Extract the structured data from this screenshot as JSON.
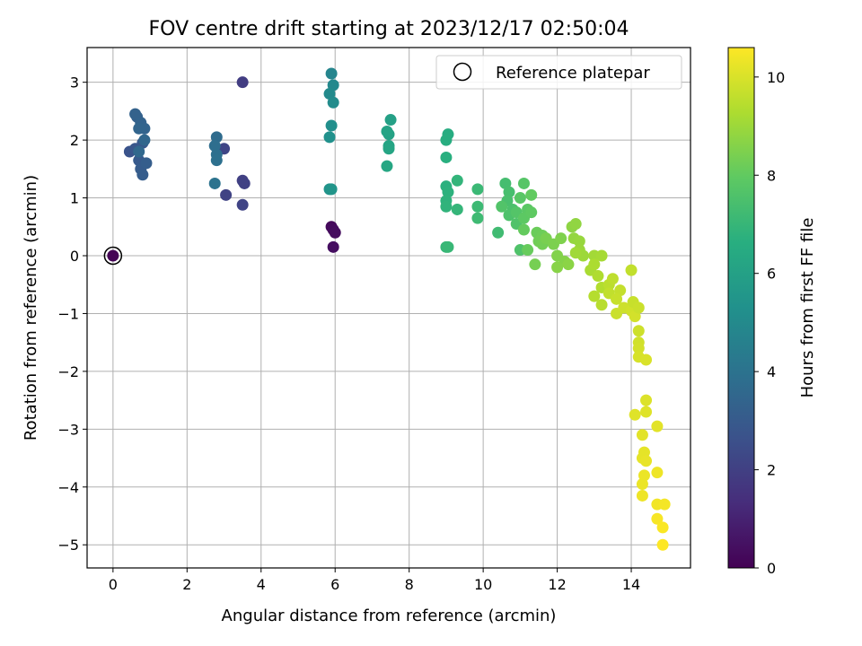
{
  "chart_data": {
    "type": "scatter",
    "title": "FOV centre drift starting at 2023/12/17 02:50:04",
    "xlabel": "Angular distance from reference (arcmin)",
    "ylabel": "Rotation from reference (arcmin)",
    "xlim": [
      -0.7,
      15.6
    ],
    "ylim": [
      -5.4,
      3.6
    ],
    "xticks": [
      0,
      2,
      4,
      6,
      8,
      10,
      12,
      14
    ],
    "yticks": [
      3,
      2,
      1,
      0,
      -1,
      -2,
      -3,
      -4,
      -5
    ],
    "grid": true,
    "colormap": "viridis",
    "colorbar": {
      "label": "Hours from first FF file",
      "min": 0,
      "max": 10.6,
      "ticks": [
        0,
        2,
        4,
        6,
        8,
        10
      ]
    },
    "reference": {
      "name": "Reference platepar",
      "x": 0,
      "y": 0
    },
    "legend": {
      "position": "top-right",
      "entries": [
        "Reference platepar"
      ]
    },
    "points": [
      [
        0.0,
        0.0,
        0.05
      ],
      [
        5.9,
        0.5,
        0.25
      ],
      [
        5.95,
        0.45,
        0.3
      ],
      [
        6.0,
        0.4,
        0.35
      ],
      [
        5.95,
        0.15,
        0.4
      ],
      [
        3.5,
        3.0,
        1.9
      ],
      [
        3.5,
        1.3,
        2.0
      ],
      [
        3.55,
        1.25,
        2.05
      ],
      [
        3.05,
        1.05,
        2.1
      ],
      [
        3.5,
        0.88,
        2.15
      ],
      [
        3.0,
        1.85,
        2.2
      ],
      [
        0.45,
        1.8,
        2.7
      ],
      [
        0.6,
        1.85,
        2.8
      ],
      [
        0.8,
        1.95,
        2.9
      ],
      [
        0.7,
        1.65,
        3.0
      ],
      [
        0.75,
        1.5,
        3.05
      ],
      [
        0.8,
        1.4,
        3.1
      ],
      [
        0.9,
        1.6,
        3.15
      ],
      [
        0.65,
        2.4,
        3.25
      ],
      [
        0.6,
        2.45,
        3.3
      ],
      [
        0.75,
        2.3,
        3.35
      ],
      [
        0.85,
        2.2,
        3.4
      ],
      [
        0.7,
        2.2,
        3.45
      ],
      [
        0.85,
        2.0,
        3.5
      ],
      [
        0.7,
        1.8,
        3.55
      ],
      [
        2.8,
        2.05,
        3.7
      ],
      [
        2.75,
        1.9,
        3.8
      ],
      [
        2.8,
        1.75,
        3.85
      ],
      [
        2.8,
        1.65,
        3.9
      ],
      [
        2.75,
        1.25,
        4.0
      ],
      [
        5.9,
        3.15,
        4.8
      ],
      [
        5.95,
        2.95,
        4.9
      ],
      [
        5.85,
        2.8,
        5.0
      ],
      [
        5.95,
        2.65,
        5.1
      ],
      [
        5.9,
        2.25,
        5.2
      ],
      [
        5.85,
        2.05,
        5.3
      ],
      [
        5.85,
        1.15,
        5.4
      ],
      [
        5.9,
        1.15,
        5.5
      ],
      [
        7.5,
        2.35,
        6.0
      ],
      [
        7.45,
        2.1,
        6.05
      ],
      [
        7.4,
        2.15,
        6.1
      ],
      [
        7.45,
        1.9,
        6.15
      ],
      [
        7.45,
        1.85,
        6.2
      ],
      [
        7.4,
        1.55,
        6.25
      ],
      [
        9.05,
        2.1,
        6.55
      ],
      [
        9.0,
        2.0,
        6.6
      ],
      [
        9.0,
        1.7,
        6.65
      ],
      [
        9.0,
        1.2,
        6.7
      ],
      [
        9.05,
        1.1,
        6.75
      ],
      [
        9.0,
        0.95,
        6.8
      ],
      [
        9.0,
        0.85,
        6.85
      ],
      [
        9.3,
        1.3,
        6.9
      ],
      [
        9.3,
        0.8,
        6.95
      ],
      [
        9.0,
        0.15,
        7.0
      ],
      [
        9.05,
        0.15,
        7.05
      ],
      [
        9.85,
        1.15,
        7.1
      ],
      [
        9.85,
        0.85,
        7.15
      ],
      [
        9.85,
        0.65,
        7.2
      ],
      [
        10.4,
        0.4,
        7.25
      ],
      [
        10.6,
        1.25,
        7.35
      ],
      [
        10.7,
        1.1,
        7.4
      ],
      [
        10.65,
        0.95,
        7.45
      ],
      [
        10.8,
        0.8,
        7.5
      ],
      [
        10.7,
        0.7,
        7.55
      ],
      [
        10.9,
        0.55,
        7.6
      ],
      [
        11.0,
        0.1,
        7.6
      ],
      [
        10.5,
        0.85,
        7.65
      ],
      [
        10.9,
        0.75,
        7.7
      ],
      [
        11.1,
        1.25,
        7.75
      ],
      [
        11.0,
        1.0,
        7.8
      ],
      [
        11.2,
        0.8,
        7.85
      ],
      [
        11.1,
        0.65,
        7.9
      ],
      [
        11.3,
        0.75,
        7.95
      ],
      [
        11.3,
        1.05,
        8.0
      ],
      [
        11.1,
        0.45,
        8.05
      ],
      [
        11.2,
        0.1,
        8.1
      ],
      [
        11.45,
        0.4,
        8.15
      ],
      [
        11.6,
        0.35,
        8.2
      ],
      [
        11.5,
        0.25,
        8.25
      ],
      [
        11.6,
        0.2,
        8.3
      ],
      [
        11.4,
        -0.15,
        8.35
      ],
      [
        11.7,
        0.3,
        8.4
      ],
      [
        11.9,
        0.2,
        8.45
      ],
      [
        12.1,
        0.3,
        8.5
      ],
      [
        12.0,
        0.0,
        8.55
      ],
      [
        12.2,
        -0.1,
        8.6
      ],
      [
        12.0,
        -0.2,
        8.65
      ],
      [
        12.3,
        -0.15,
        8.7
      ],
      [
        12.4,
        0.5,
        8.75
      ],
      [
        12.5,
        0.55,
        8.8
      ],
      [
        12.45,
        0.3,
        8.85
      ],
      [
        12.6,
        0.25,
        8.9
      ],
      [
        12.6,
        0.1,
        8.95
      ],
      [
        12.7,
        0.0,
        9.0
      ],
      [
        12.5,
        0.05,
        9.05
      ],
      [
        13.0,
        0.0,
        9.1
      ],
      [
        13.2,
        0.0,
        9.15
      ],
      [
        12.9,
        -0.25,
        9.2
      ],
      [
        13.0,
        -0.15,
        9.25
      ],
      [
        13.1,
        -0.35,
        9.3
      ],
      [
        13.2,
        -0.55,
        9.35
      ],
      [
        13.0,
        -0.7,
        9.4
      ],
      [
        13.2,
        -0.85,
        9.45
      ],
      [
        13.4,
        -0.5,
        9.5
      ],
      [
        13.5,
        -0.4,
        9.55
      ],
      [
        13.4,
        -0.65,
        9.6
      ],
      [
        13.7,
        -0.6,
        9.65
      ],
      [
        13.6,
        -0.75,
        9.7
      ],
      [
        13.6,
        -1.0,
        9.75
      ],
      [
        13.8,
        -0.9,
        9.8
      ],
      [
        14.0,
        -0.95,
        9.85
      ],
      [
        14.1,
        -1.05,
        9.9
      ],
      [
        14.0,
        -0.25,
        9.6
      ],
      [
        14.05,
        -0.8,
        9.7
      ],
      [
        14.2,
        -0.9,
        9.75
      ],
      [
        14.2,
        -1.3,
        9.8
      ],
      [
        14.2,
        -1.5,
        9.85
      ],
      [
        14.2,
        -1.6,
        9.9
      ],
      [
        14.2,
        -1.75,
        9.95
      ],
      [
        14.4,
        -1.8,
        10.0
      ],
      [
        14.4,
        -2.5,
        10.05
      ],
      [
        14.4,
        -2.7,
        10.1
      ],
      [
        14.1,
        -2.75,
        10.1
      ],
      [
        14.7,
        -2.95,
        10.15
      ],
      [
        14.3,
        -3.1,
        10.15
      ],
      [
        14.35,
        -3.4,
        10.2
      ],
      [
        14.3,
        -3.5,
        10.2
      ],
      [
        14.4,
        -3.55,
        10.25
      ],
      [
        14.35,
        -3.8,
        10.3
      ],
      [
        14.3,
        -3.95,
        10.3
      ],
      [
        14.3,
        -4.15,
        10.35
      ],
      [
        14.7,
        -3.75,
        10.35
      ],
      [
        14.7,
        -4.3,
        10.4
      ],
      [
        14.9,
        -4.3,
        10.45
      ],
      [
        14.7,
        -4.55,
        10.5
      ],
      [
        14.85,
        -4.7,
        10.55
      ],
      [
        14.85,
        -5.0,
        10.6
      ]
    ]
  }
}
